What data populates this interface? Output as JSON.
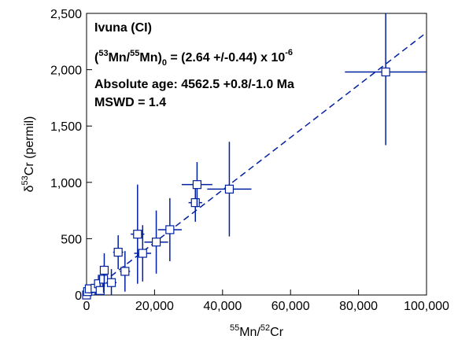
{
  "chart_data": {
    "type": "scatter",
    "xlim": [
      0,
      100000
    ],
    "ylim": [
      0,
      2500
    ],
    "xticks": [
      0,
      20000,
      40000,
      60000,
      80000,
      100000
    ],
    "yticks": [
      0,
      500,
      1000,
      1500,
      2000,
      2500
    ],
    "xtick_labels": [
      "0",
      "20,000",
      "40,000",
      "60,000",
      "80,000",
      "100,000"
    ],
    "ytick_labels": [
      "0",
      "500",
      "1,000",
      "1,500",
      "2,000",
      "2,500"
    ],
    "xlabel": {
      "pre": "",
      "sup": "55",
      "mid": "Mn/",
      "sup2": "52",
      "post": "Cr"
    },
    "ylabel": {
      "pre": "δ",
      "sup": "53",
      "post": "Cr (permil)"
    },
    "annotations": {
      "title": "Ivuna (CI)",
      "ratio": {
        "open": "(",
        "sup1": "53",
        "mn1": "Mn/",
        "sup2": "55",
        "mn2": "Mn)",
        "sub": "0",
        "value": " = (2.64 +/-0.44) x 10",
        "exp": "-6"
      },
      "age": "Absolute age: 4562.5 +0.8/-1.0 Ma",
      "mswd": "MSWD = 1.4"
    },
    "fit_line": {
      "x": [
        0,
        100000
      ],
      "y": [
        0,
        2330
      ]
    },
    "series_color": "#00209f",
    "points": [
      {
        "x": 0,
        "y": 0,
        "xerr": 300,
        "yerr": 20
      },
      {
        "x": 300,
        "y": 30,
        "xerr": 300,
        "yerr": 30
      },
      {
        "x": 800,
        "y": 55,
        "xerr": 500,
        "yerr": 40
      },
      {
        "x": 2500,
        "y": 60,
        "xerr": 700,
        "yerr": 60
      },
      {
        "x": 3500,
        "y": 100,
        "xerr": 900,
        "yerr": 80
      },
      {
        "x": 4000,
        "y": 40,
        "xerr": 800,
        "yerr": 60
      },
      {
        "x": 5000,
        "y": 140,
        "xerr": 1000,
        "yerr": 120
      },
      {
        "x": 5200,
        "y": 220,
        "xerr": 1200,
        "yerr": 150
      },
      {
        "x": 7300,
        "y": 110,
        "xerr": 1500,
        "yerr": 120
      },
      {
        "x": 9300,
        "y": 380,
        "xerr": 1500,
        "yerr": 150
      },
      {
        "x": 11300,
        "y": 210,
        "xerr": 1500,
        "yerr": 180
      },
      {
        "x": 15000,
        "y": 540,
        "xerr": 2000,
        "yerr": 440
      },
      {
        "x": 16500,
        "y": 370,
        "xerr": 2500,
        "yerr": 250
      },
      {
        "x": 20500,
        "y": 470,
        "xerr": 3500,
        "yerr": 280
      },
      {
        "x": 24500,
        "y": 580,
        "xerr": 3500,
        "yerr": 280
      },
      {
        "x": 32000,
        "y": 820,
        "xerr": 2000,
        "yerr": 170
      },
      {
        "x": 32500,
        "y": 980,
        "xerr": 4500,
        "yerr": 200
      },
      {
        "x": 42000,
        "y": 940,
        "xerr": 6500,
        "yerr": 420
      },
      {
        "x": 88000,
        "y": 1980,
        "xerr": 12000,
        "yerr": 650
      }
    ]
  }
}
